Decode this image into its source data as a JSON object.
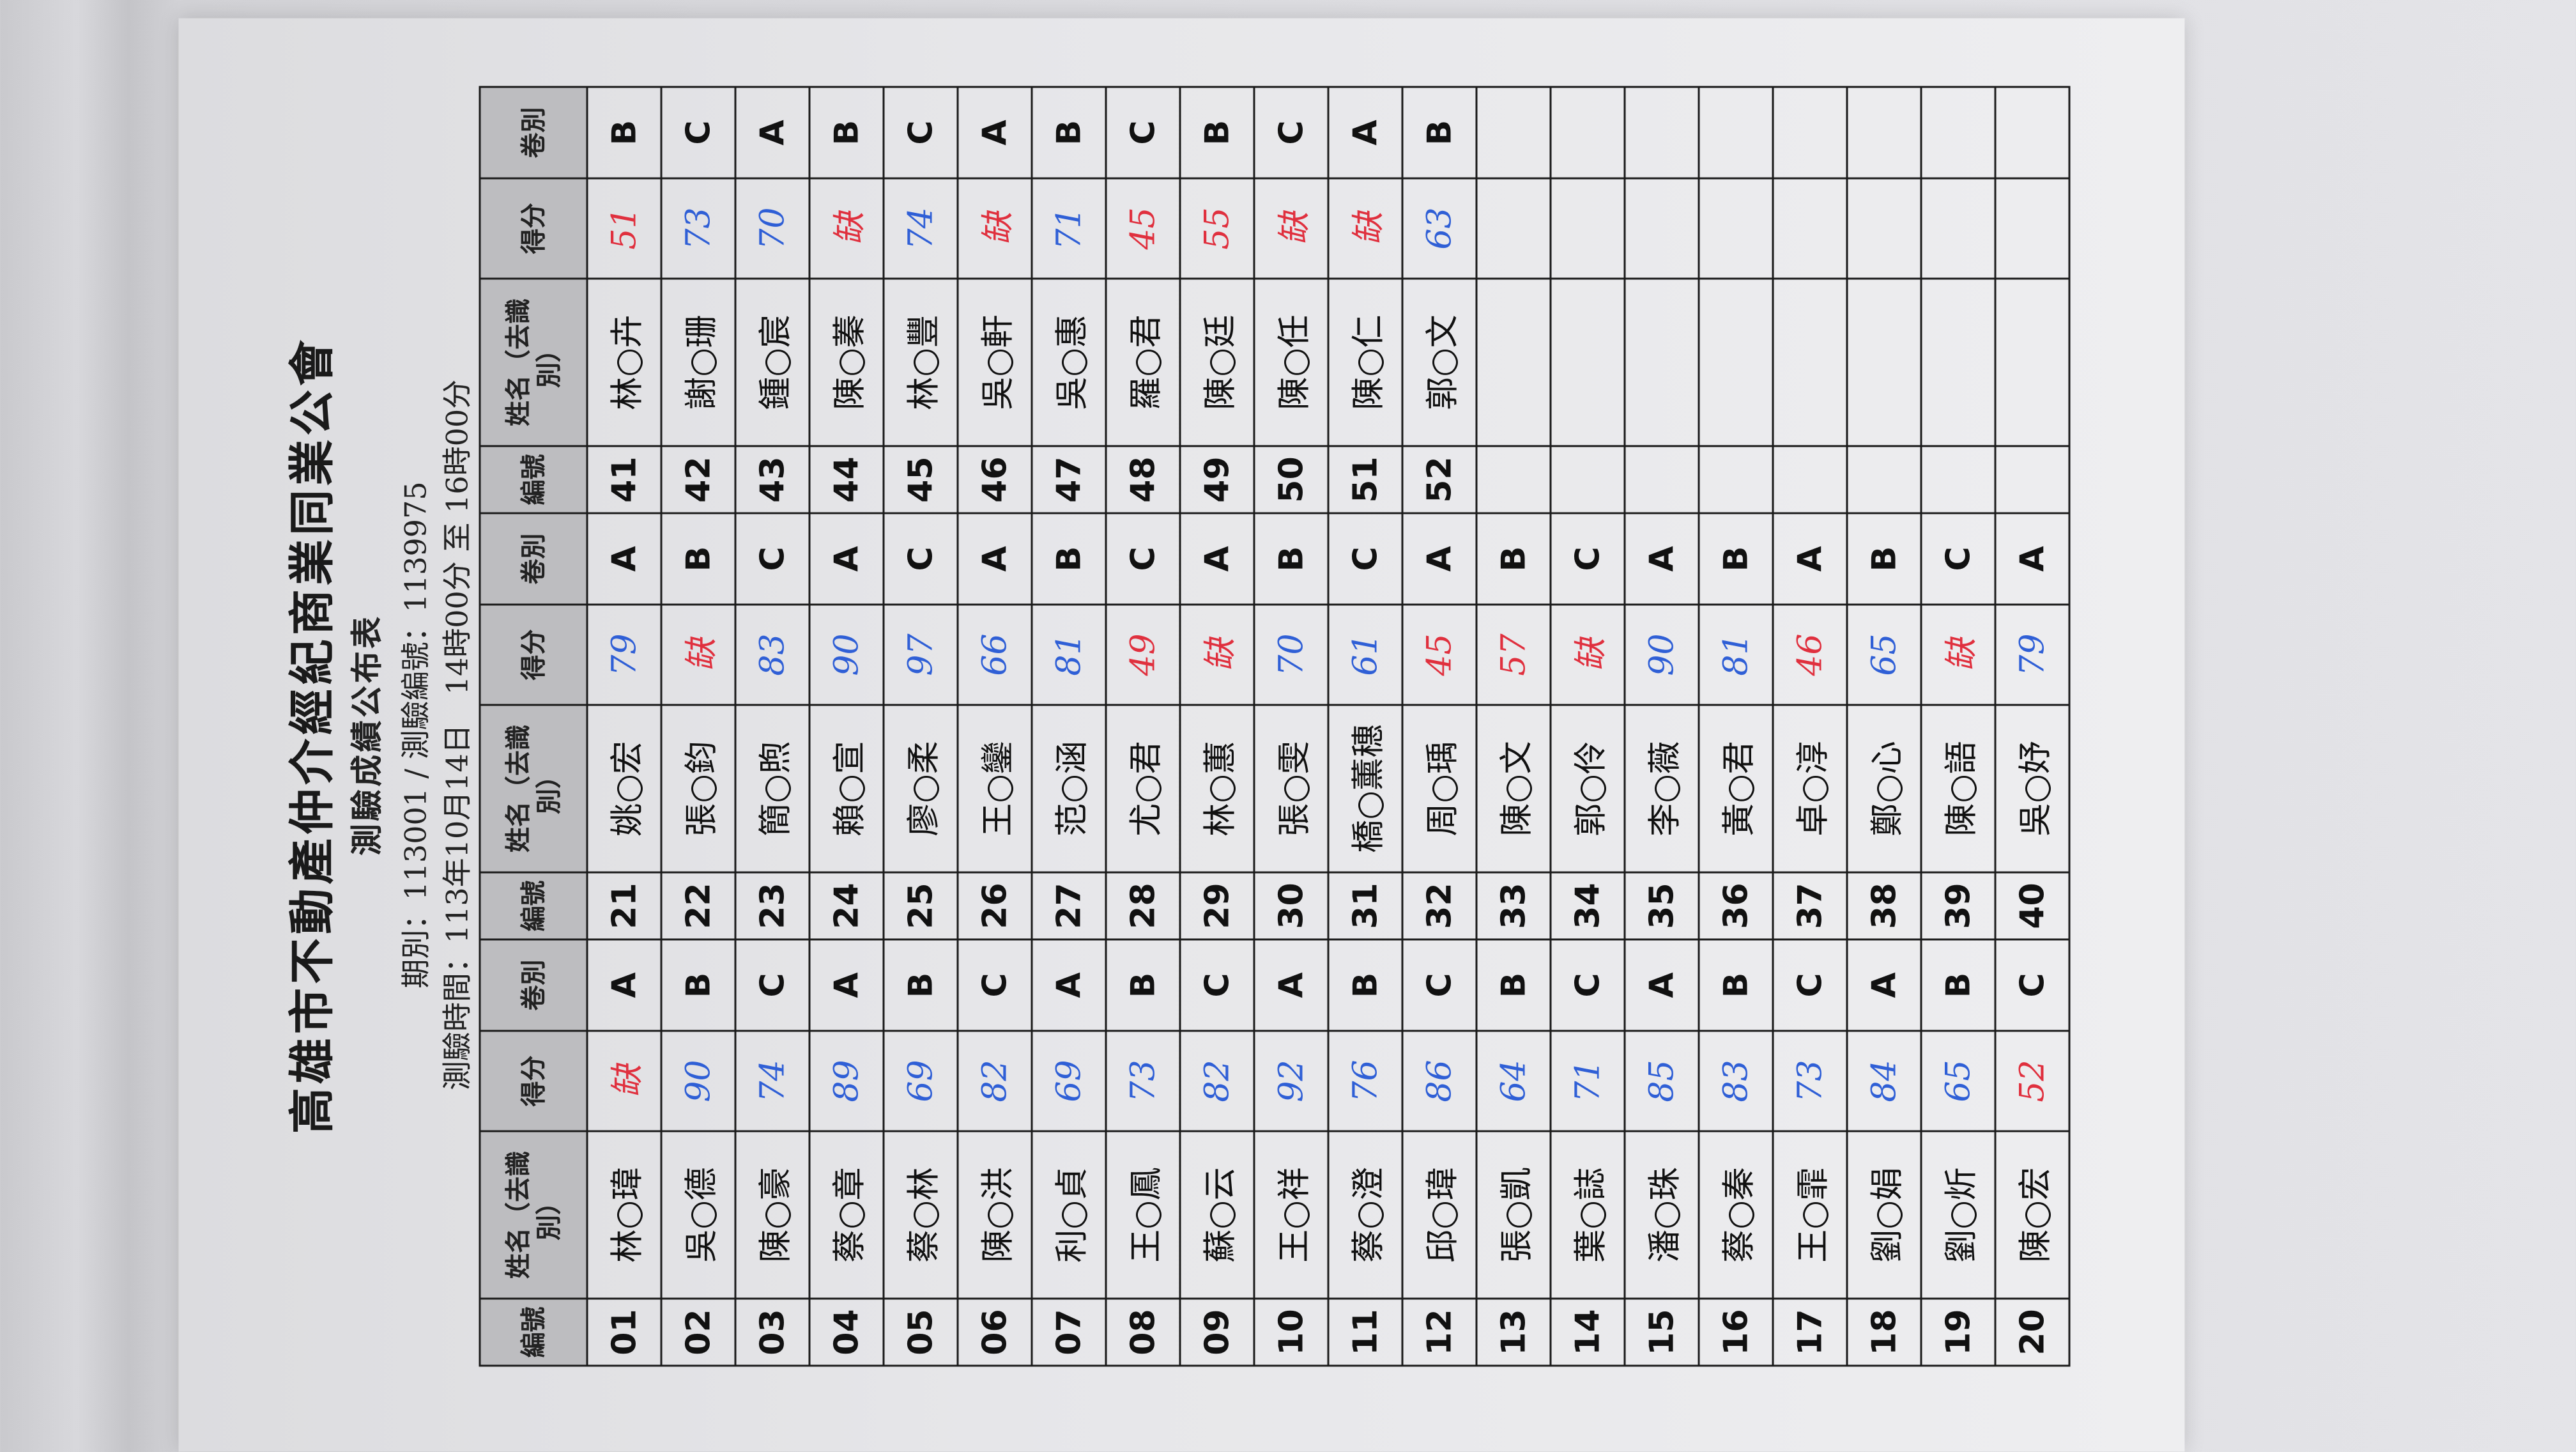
{
  "document": {
    "title": "高雄市不動產仲介經紀商業同業公會",
    "subtitle": "測驗成績公布表",
    "period_line": "期別：113001 / 測驗編號：1139975",
    "time_line": "測驗時間：113年10月14日　14時00分 至 16時00分"
  },
  "table": {
    "headers": {
      "no": "編號",
      "name": "姓名（去識別）",
      "score": "得分",
      "paper": "卷別"
    },
    "ink_colors": {
      "pass": "#2f5fd6",
      "fail": "#e0303e"
    },
    "records": [
      {
        "no": "01",
        "name": "林○瑋",
        "score": "缺",
        "paper": "A"
      },
      {
        "no": "02",
        "name": "吳○德",
        "score": "90",
        "paper": "B"
      },
      {
        "no": "03",
        "name": "陳○豪",
        "score": "74",
        "paper": "C"
      },
      {
        "no": "04",
        "name": "蔡○章",
        "score": "89",
        "paper": "A"
      },
      {
        "no": "05",
        "name": "蔡○林",
        "score": "69",
        "paper": "B"
      },
      {
        "no": "06",
        "name": "陳○洪",
        "score": "82",
        "paper": "C"
      },
      {
        "no": "07",
        "name": "利○貞",
        "score": "69",
        "paper": "A"
      },
      {
        "no": "08",
        "name": "王○鳳",
        "score": "73",
        "paper": "B"
      },
      {
        "no": "09",
        "name": "蘇○云",
        "score": "82",
        "paper": "C"
      },
      {
        "no": "10",
        "name": "王○祥",
        "score": "92",
        "paper": "A"
      },
      {
        "no": "11",
        "name": "蔡○澄",
        "score": "76",
        "paper": "B"
      },
      {
        "no": "12",
        "name": "邱○瑋",
        "score": "86",
        "paper": "C"
      },
      {
        "no": "13",
        "name": "張○凱",
        "score": "64",
        "paper": "B"
      },
      {
        "no": "14",
        "name": "葉○誌",
        "score": "71",
        "paper": "C"
      },
      {
        "no": "15",
        "name": "潘○珠",
        "score": "85",
        "paper": "A"
      },
      {
        "no": "16",
        "name": "蔡○秦",
        "score": "83",
        "paper": "B"
      },
      {
        "no": "17",
        "name": "王○霏",
        "score": "73",
        "paper": "C"
      },
      {
        "no": "18",
        "name": "劉○娟",
        "score": "84",
        "paper": "A"
      },
      {
        "no": "19",
        "name": "劉○炘",
        "score": "65",
        "paper": "B"
      },
      {
        "no": "20",
        "name": "陳○宏",
        "score": "52",
        "paper": "C"
      },
      {
        "no": "21",
        "name": "姚○宏",
        "score": "79",
        "paper": "A"
      },
      {
        "no": "22",
        "name": "張○鈞",
        "score": "缺",
        "paper": "B"
      },
      {
        "no": "23",
        "name": "簡○煦",
        "score": "83",
        "paper": "C"
      },
      {
        "no": "24",
        "name": "賴○宣",
        "score": "90",
        "paper": "A"
      },
      {
        "no": "25",
        "name": "廖○柔",
        "score": "97",
        "paper": "C"
      },
      {
        "no": "26",
        "name": "王○鑾",
        "score": "66",
        "paper": "A"
      },
      {
        "no": "27",
        "name": "范○涵",
        "score": "81",
        "paper": "B"
      },
      {
        "no": "28",
        "name": "尤○君",
        "score": "49",
        "paper": "C"
      },
      {
        "no": "29",
        "name": "林○蕙",
        "score": "缺",
        "paper": "A"
      },
      {
        "no": "30",
        "name": "張○雯",
        "score": "70",
        "paper": "B"
      },
      {
        "no": "31",
        "name": "橋○薰穗",
        "score": "61",
        "paper": "C"
      },
      {
        "no": "32",
        "name": "周○瑀",
        "score": "45",
        "paper": "A"
      },
      {
        "no": "33",
        "name": "陳○文",
        "score": "57",
        "paper": "B"
      },
      {
        "no": "34",
        "name": "郭○伶",
        "score": "缺",
        "paper": "C"
      },
      {
        "no": "35",
        "name": "李○薇",
        "score": "90",
        "paper": "A"
      },
      {
        "no": "36",
        "name": "黃○君",
        "score": "81",
        "paper": "B"
      },
      {
        "no": "37",
        "name": "卓○淳",
        "score": "46",
        "paper": "A"
      },
      {
        "no": "38",
        "name": "鄭○心",
        "score": "65",
        "paper": "B"
      },
      {
        "no": "39",
        "name": "陳○語",
        "score": "缺",
        "paper": "C"
      },
      {
        "no": "40",
        "name": "吳○妤",
        "score": "79",
        "paper": "A"
      },
      {
        "no": "41",
        "name": "林○卉",
        "score": "51",
        "paper": "B"
      },
      {
        "no": "42",
        "name": "謝○珊",
        "score": "73",
        "paper": "C"
      },
      {
        "no": "43",
        "name": "鍾○宸",
        "score": "70",
        "paper": "A"
      },
      {
        "no": "44",
        "name": "陳○蓁",
        "score": "缺",
        "paper": "B"
      },
      {
        "no": "45",
        "name": "林○豐",
        "score": "74",
        "paper": "C"
      },
      {
        "no": "46",
        "name": "吳○軒",
        "score": "缺",
        "paper": "A"
      },
      {
        "no": "47",
        "name": "吳○惠",
        "score": "71",
        "paper": "B"
      },
      {
        "no": "48",
        "name": "羅○君",
        "score": "45",
        "paper": "C"
      },
      {
        "no": "49",
        "name": "陳○廷",
        "score": "55",
        "paper": "B"
      },
      {
        "no": "50",
        "name": "陳○任",
        "score": "缺",
        "paper": "C"
      },
      {
        "no": "51",
        "name": "陳○仁",
        "score": "缺",
        "paper": "A"
      },
      {
        "no": "52",
        "name": "郭○文",
        "score": "63",
        "paper": "B"
      }
    ]
  }
}
